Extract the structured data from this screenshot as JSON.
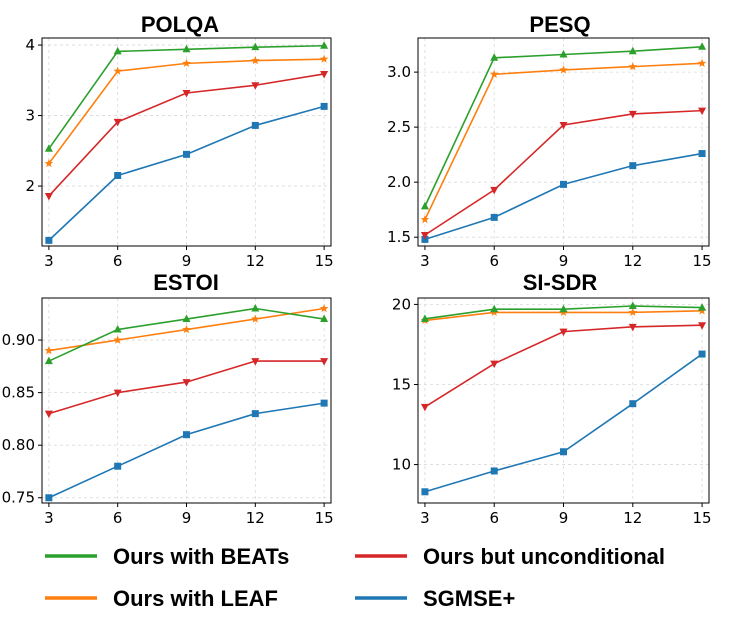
{
  "chart_data": [
    {
      "type": "line",
      "title": "POLQA",
      "x": [
        3,
        6,
        9,
        12,
        15
      ],
      "xlim": [
        2.7,
        15.3
      ],
      "ylim": [
        1.15,
        4.1
      ],
      "yticks": [
        2,
        3,
        4
      ],
      "ytick_labels": [
        "2",
        "3",
        "4"
      ],
      "grid": true,
      "series": [
        {
          "name": "Ours with BEATs",
          "values": [
            2.53,
            3.91,
            3.94,
            3.97,
            3.99
          ]
        },
        {
          "name": "Ours with LEAF",
          "values": [
            2.32,
            3.63,
            3.74,
            3.78,
            3.8
          ]
        },
        {
          "name": "Ours but unconditional",
          "values": [
            1.86,
            2.91,
            3.32,
            3.43,
            3.59
          ]
        },
        {
          "name": "SGMSE+",
          "values": [
            1.23,
            2.15,
            2.45,
            2.86,
            3.13
          ]
        }
      ]
    },
    {
      "type": "line",
      "title": "PESQ",
      "x": [
        3,
        6,
        9,
        12,
        15
      ],
      "xlim": [
        2.7,
        15.3
      ],
      "ylim": [
        1.42,
        3.31
      ],
      "yticks": [
        1.5,
        2.0,
        2.5,
        3.0
      ],
      "ytick_labels": [
        "1.5",
        "2.0",
        "2.5",
        "3.0"
      ],
      "grid": true,
      "series": [
        {
          "name": "Ours with BEATs",
          "values": [
            1.78,
            3.13,
            3.16,
            3.19,
            3.23
          ]
        },
        {
          "name": "Ours with LEAF",
          "values": [
            1.66,
            2.98,
            3.02,
            3.05,
            3.08
          ]
        },
        {
          "name": "Ours but unconditional",
          "values": [
            1.52,
            1.93,
            2.52,
            2.62,
            2.65
          ]
        },
        {
          "name": "SGMSE+",
          "values": [
            1.48,
            1.68,
            1.98,
            2.15,
            2.26
          ]
        }
      ]
    },
    {
      "type": "line",
      "title": "ESTOI",
      "x": [
        3,
        6,
        9,
        12,
        15
      ],
      "xlim": [
        2.7,
        15.3
      ],
      "ylim": [
        0.745,
        0.94
      ],
      "yticks": [
        0.75,
        0.8,
        0.85,
        0.9
      ],
      "ytick_labels": [
        "0.75",
        "0.80",
        "0.85",
        "0.90"
      ],
      "grid": true,
      "series": [
        {
          "name": "Ours with BEATs",
          "values": [
            0.88,
            0.91,
            0.92,
            0.93,
            0.92
          ]
        },
        {
          "name": "Ours with LEAF",
          "values": [
            0.89,
            0.9,
            0.91,
            0.92,
            0.93
          ]
        },
        {
          "name": "Ours but unconditional",
          "values": [
            0.83,
            0.85,
            0.86,
            0.88,
            0.88
          ]
        },
        {
          "name": "SGMSE+",
          "values": [
            0.75,
            0.78,
            0.81,
            0.83,
            0.84
          ]
        }
      ]
    },
    {
      "type": "line",
      "title": "SI-SDR",
      "x": [
        3,
        6,
        9,
        12,
        15
      ],
      "xlim": [
        2.7,
        15.3
      ],
      "ylim": [
        7.6,
        20.4
      ],
      "yticks": [
        10,
        15,
        20
      ],
      "ytick_labels": [
        "10",
        "15",
        "20"
      ],
      "grid": true,
      "series": [
        {
          "name": "Ours with BEATs",
          "values": [
            19.1,
            19.7,
            19.7,
            19.9,
            19.8
          ]
        },
        {
          "name": "Ours with LEAF",
          "values": [
            19.0,
            19.5,
            19.5,
            19.5,
            19.6
          ]
        },
        {
          "name": "Ours but unconditional",
          "values": [
            13.6,
            16.3,
            18.3,
            18.6,
            18.7
          ]
        },
        {
          "name": "SGMSE+",
          "values": [
            8.3,
            9.6,
            10.8,
            13.8,
            16.9
          ]
        }
      ]
    }
  ],
  "xtick_labels": [
    "3",
    "6",
    "9",
    "12",
    "15"
  ],
  "legend": {
    "placement": "bottom",
    "entries": [
      {
        "label": "Ours with BEATs",
        "color": "#2ca02c",
        "marker": "triangle-up"
      },
      {
        "label": "Ours but unconditional",
        "color": "#d62728",
        "marker": "triangle-down"
      },
      {
        "label": "Ours with LEAF",
        "color": "#ff7f0e",
        "marker": "star"
      },
      {
        "label": "SGMSE+",
        "color": "#1f77b4",
        "marker": "square"
      }
    ]
  },
  "series_colors": {
    "Ours with BEATs": "#2ca02c",
    "Ours with LEAF": "#ff7f0e",
    "Ours but unconditional": "#d62728",
    "SGMSE+": "#1f77b4"
  },
  "series_markers": {
    "Ours with BEATs": "triangle-up",
    "Ours with LEAF": "star",
    "Ours but unconditional": "triangle-down",
    "SGMSE+": "square"
  }
}
